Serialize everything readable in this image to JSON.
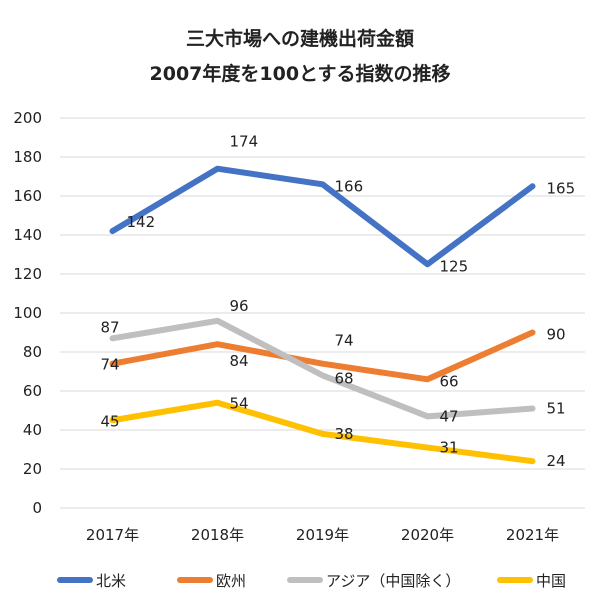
{
  "chart_data": {
    "type": "line",
    "title": "三大市場への建機出荷金額",
    "subtitle": "2007年度を100とする指数の推移",
    "categories": [
      "2017年",
      "2018年",
      "2019年",
      "2020年",
      "2021年"
    ],
    "ylim": [
      0,
      200
    ],
    "yticks": [
      0,
      20,
      40,
      60,
      80,
      100,
      120,
      140,
      160,
      180,
      200
    ],
    "grid": true,
    "legend_position": "bottom",
    "series": [
      {
        "name": "北米",
        "color": "#4472C4",
        "values": [
          142,
          174,
          166,
          125,
          165
        ]
      },
      {
        "name": "欧州",
        "color": "#ED7D31",
        "values": [
          74,
          84,
          74,
          66,
          90
        ]
      },
      {
        "name": "アジア（中国除く）",
        "color": "#BFBFBF",
        "values": [
          87,
          96,
          68,
          47,
          51
        ]
      },
      {
        "name": "中国",
        "color": "#FFC000",
        "values": [
          45,
          54,
          38,
          31,
          24
        ]
      }
    ]
  }
}
